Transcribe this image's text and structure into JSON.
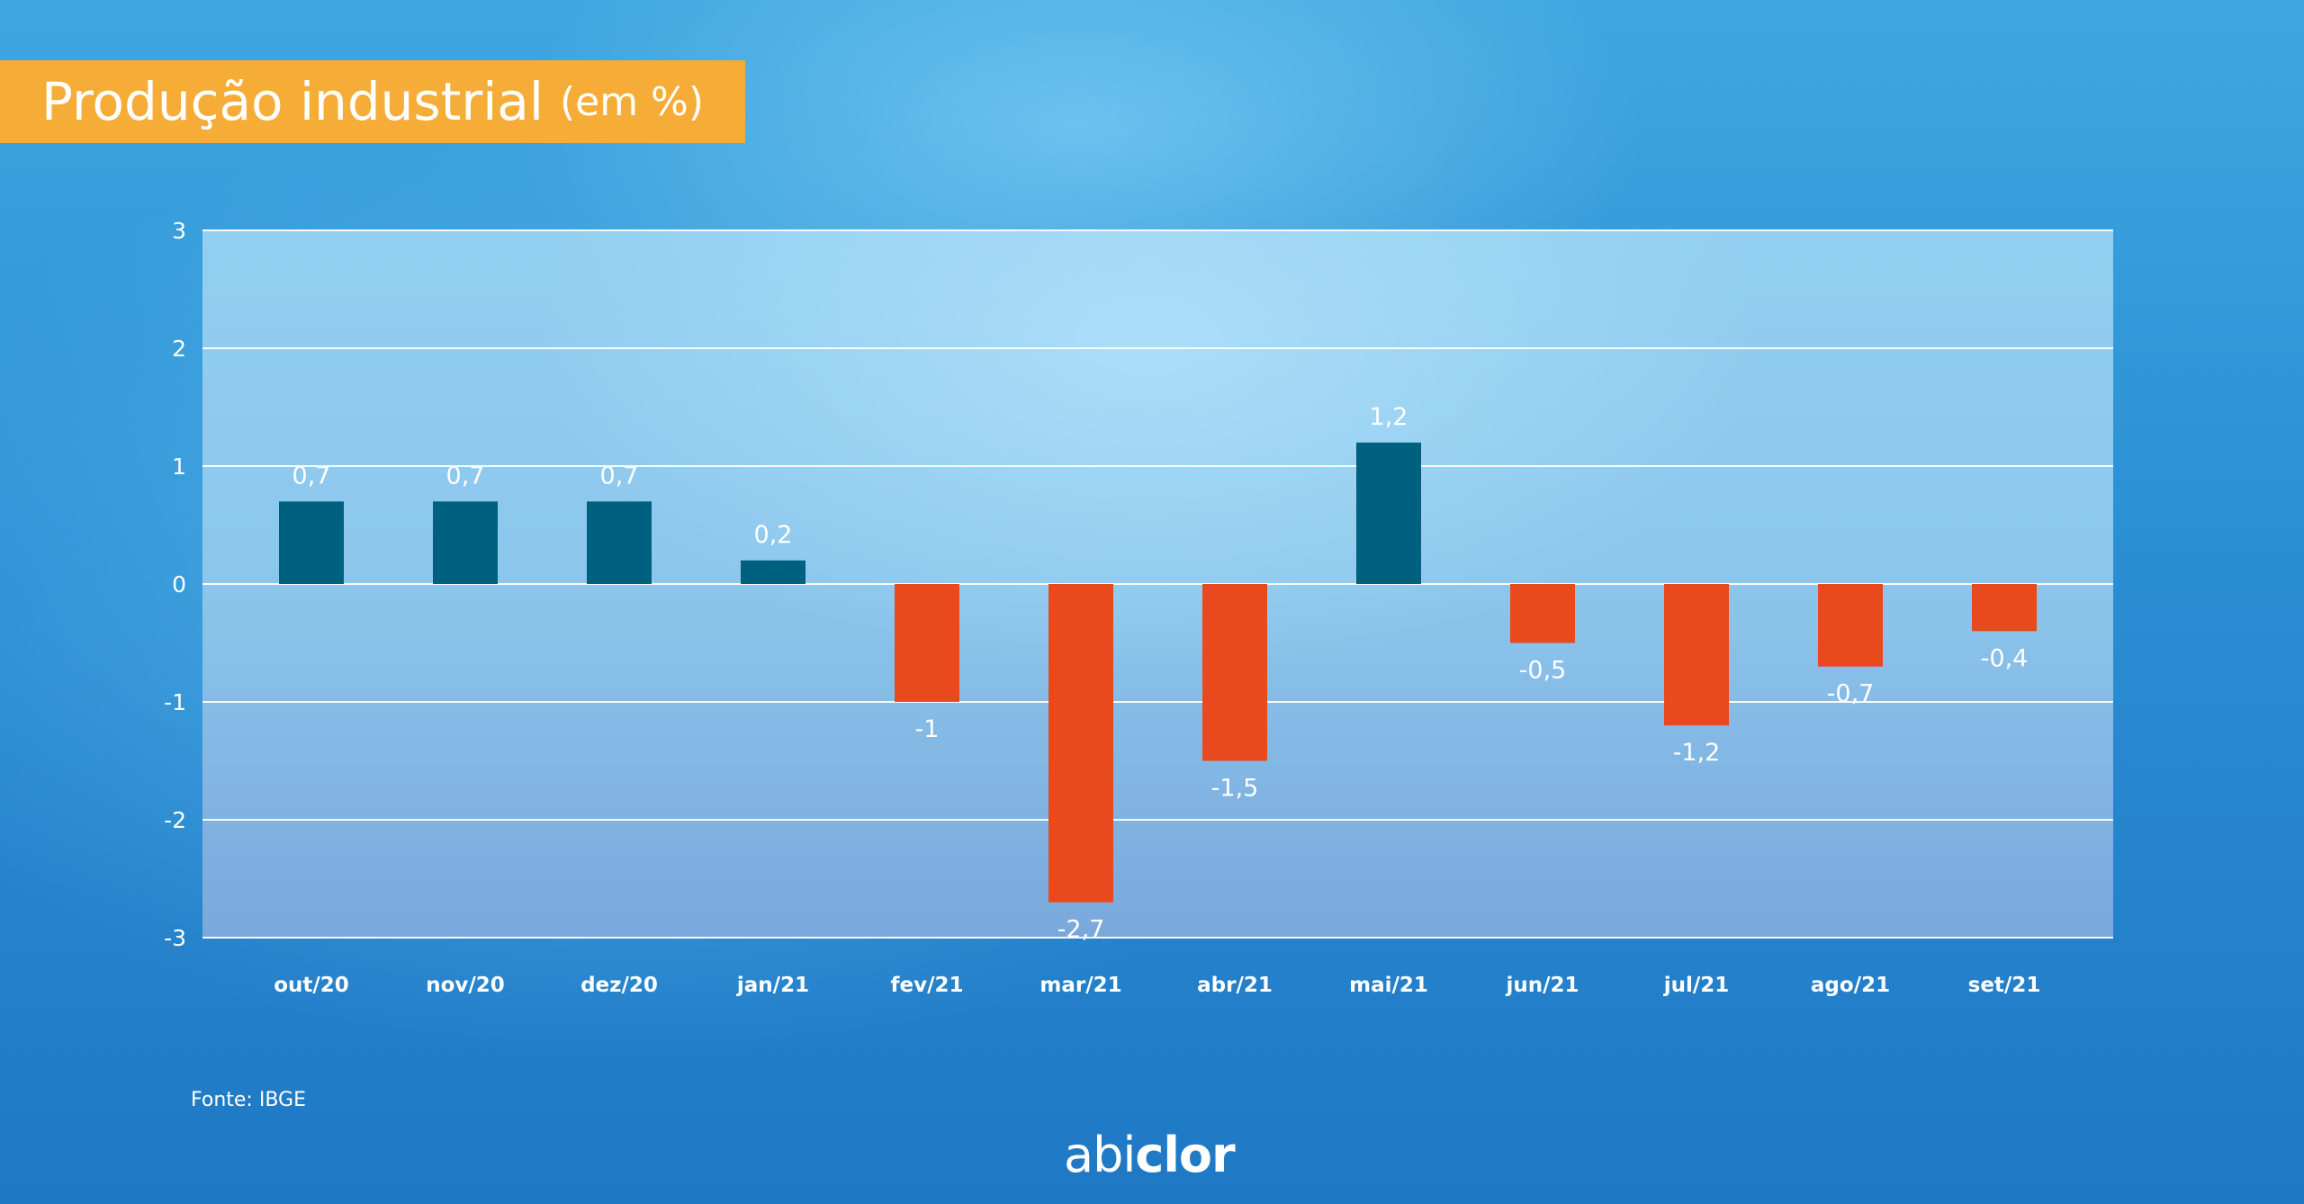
{
  "header": {
    "title": "Produção industrial",
    "unit": "(em %)"
  },
  "source": "Fonte: IBGE",
  "logo": {
    "part1": "abi",
    "part2": "clor"
  },
  "colors": {
    "positive": "#00607f",
    "negative": "#e8491d",
    "title_banner": "#f6ad37"
  },
  "chart_data": {
    "type": "bar",
    "title": "Produção industrial (em %)",
    "xlabel": "",
    "ylabel": "",
    "categories": [
      "out/20",
      "nov/20",
      "dez/20",
      "jan/21",
      "fev/21",
      "mar/21",
      "abr/21",
      "mai/21",
      "jun/21",
      "jul/21",
      "ago/21",
      "set/21"
    ],
    "values": [
      0.7,
      0.7,
      0.7,
      0.2,
      -1,
      -2.7,
      -1.5,
      1.2,
      -0.5,
      -1.2,
      -0.7,
      -0.4
    ],
    "value_labels": [
      "0,7",
      "0,7",
      "0,7",
      "0,2",
      "-1",
      "-2,7",
      "-1,5",
      "1,2",
      "-0,5",
      "-1,2",
      "-0,7",
      "-0,4"
    ],
    "yticks": [
      3,
      2,
      1,
      0,
      -1,
      -2,
      -3
    ],
    "ylim": [
      -3,
      3
    ],
    "grid": true
  }
}
